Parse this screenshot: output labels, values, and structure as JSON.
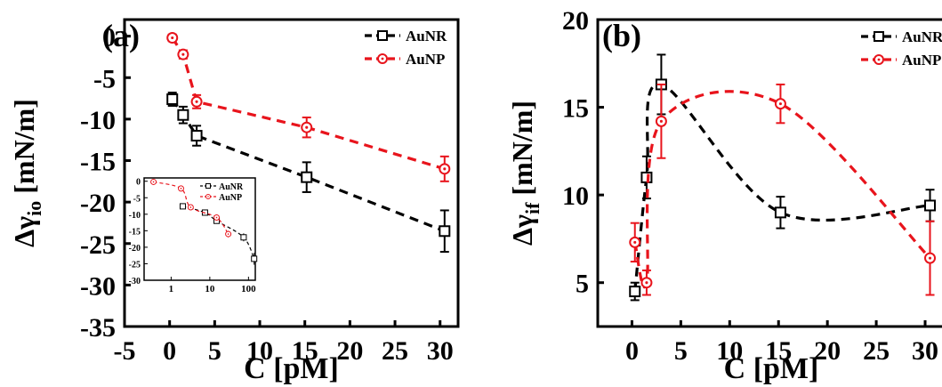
{
  "chart_data": [
    {
      "type": "line",
      "panel_label": "(a)",
      "xlabel": "C [pM]",
      "ylabel_main": "Δγ",
      "ylabel_sub": "io",
      "ylabel_unit": " [mN/m]",
      "xlim": [
        -5,
        32
      ],
      "ylim": [
        -35,
        2
      ],
      "xticks": [
        -5,
        0,
        5,
        10,
        15,
        20,
        25,
        30
      ],
      "yticks": [
        0,
        -5,
        -10,
        -15,
        -20,
        -25,
        -30,
        -35
      ],
      "legend_position": "top-right",
      "series": [
        {
          "name": "AuNR",
          "color": "#000000",
          "marker": "square",
          "x": [
            0.3,
            1.5,
            3,
            15.2,
            30.5
          ],
          "y": [
            -7.6,
            -9.5,
            -12,
            -17,
            -23.5
          ],
          "err": [
            0.8,
            1.0,
            1.2,
            1.8,
            2.5
          ]
        },
        {
          "name": "AuNP",
          "color": "#e8141c",
          "marker": "circle",
          "x": [
            0.3,
            1.5,
            3,
            15.2,
            30.5
          ],
          "y": [
            -0.2,
            -2.2,
            -7.9,
            -11,
            -16
          ],
          "err": [
            0.4,
            0.5,
            0.8,
            1.2,
            1.5
          ]
        }
      ],
      "inset": {
        "type": "line",
        "xscale": "log",
        "xlim": [
          0.2,
          150
        ],
        "ylim": [
          -30,
          1
        ],
        "xticks": [
          1,
          10,
          100
        ],
        "yticks": [
          0,
          -5,
          -10,
          -15,
          -20,
          -25,
          -30
        ],
        "legend_position": "top-right",
        "series": [
          {
            "name": "AuNR",
            "color": "#000000",
            "marker": "square",
            "x": [
              2,
              7.5,
              15,
              75,
              140
            ],
            "y": [
              -7.6,
              -9.5,
              -12,
              -17,
              -23.5
            ],
            "err": [
              0.5,
              0.5,
              0.8,
              1.2,
              1.8
            ]
          },
          {
            "name": "AuNP",
            "color": "#e8141c",
            "marker": "circle",
            "x": [
              0.35,
              1.8,
              3.2,
              15,
              30
            ],
            "y": [
              -0.2,
              -2.2,
              -7.9,
              -11,
              -16
            ],
            "err": [
              0.3,
              0.3,
              0.5,
              0.8,
              1.0
            ]
          }
        ]
      }
    },
    {
      "type": "line",
      "panel_label": "(b)",
      "xlabel": "C [pM]",
      "ylabel_main": "Δγ",
      "ylabel_sub": "if",
      "ylabel_unit": " [mN/m]",
      "xlim": [
        -3.5,
        32
      ],
      "ylim": [
        2.5,
        20
      ],
      "xticks": [
        0,
        5,
        10,
        15,
        20,
        25,
        30
      ],
      "yticks": [
        5,
        10,
        15,
        20
      ],
      "legend_position": "top-right",
      "series": [
        {
          "name": "AuNR",
          "color": "#000000",
          "marker": "square",
          "x": [
            0.3,
            1.5,
            3,
            15.2,
            30.5
          ],
          "y": [
            4.5,
            11,
            16.3,
            9,
            9.4
          ],
          "err": [
            0.5,
            1.2,
            1.7,
            0.9,
            0.9
          ]
        },
        {
          "name": "AuNP",
          "color": "#e8141c",
          "marker": "circle",
          "x": [
            0.3,
            1.5,
            3,
            15.2,
            30.5
          ],
          "y": [
            7.3,
            5,
            14.2,
            15.2,
            6.4
          ],
          "err": [
            1.1,
            0.7,
            2.1,
            1.1,
            2.1
          ]
        }
      ]
    }
  ]
}
